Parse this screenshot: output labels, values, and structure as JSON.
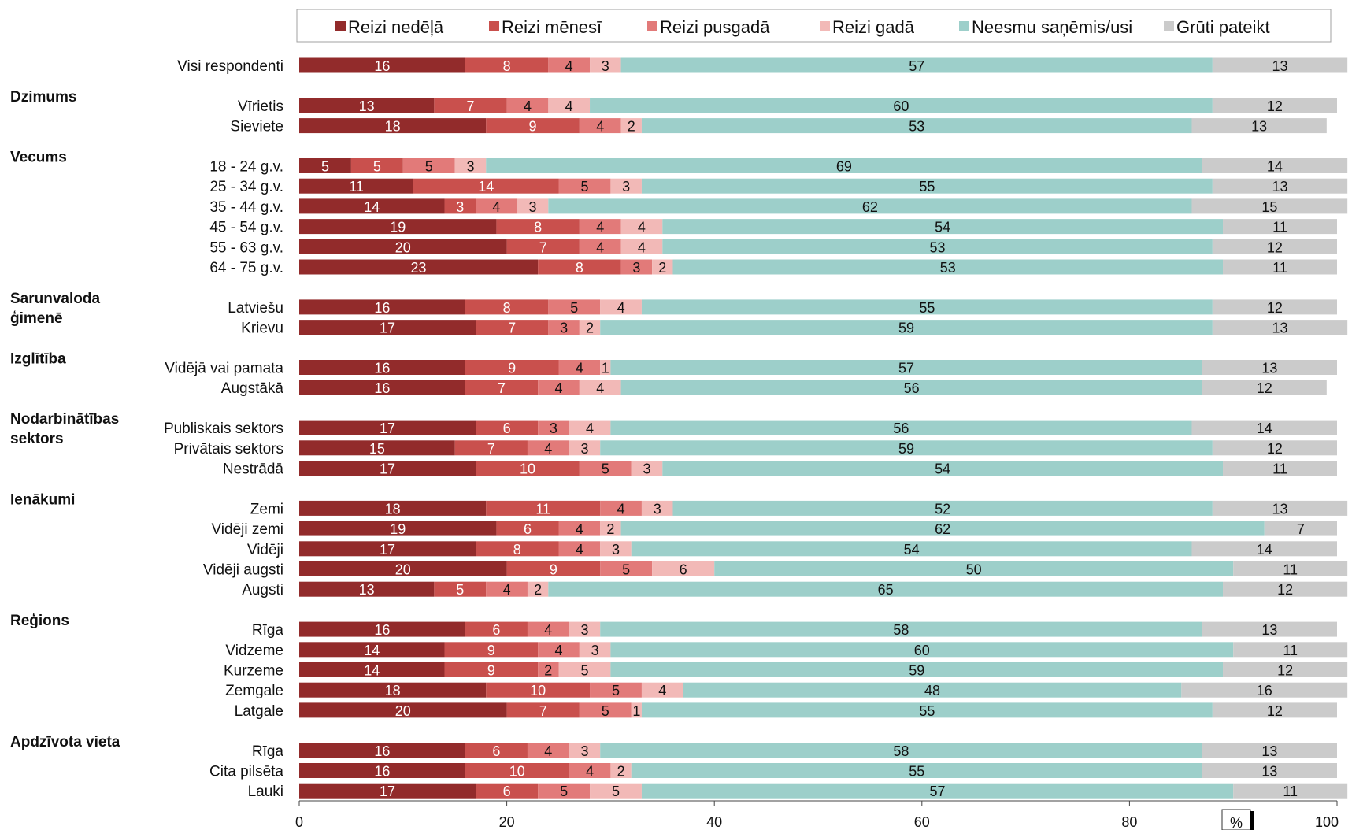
{
  "chart_data": {
    "type": "bar",
    "stacked": true,
    "orientation": "horizontal",
    "unit_label": "%",
    "legend_position": "top",
    "xlim": [
      0,
      100
    ],
    "x_ticks": [
      0,
      20,
      40,
      60,
      80,
      100
    ],
    "grid": false,
    "series": [
      {
        "name": "Reizi nedēļā",
        "color": "#922b2b",
        "label_color": "#ffffff"
      },
      {
        "name": "Reizi mēnesī",
        "color": "#c9504d",
        "label_color": "#ffffff"
      },
      {
        "name": "Reizi pusgadā",
        "color": "#e27a79",
        "label_color": "#111111"
      },
      {
        "name": "Reizi gadā",
        "color": "#f2b9b7",
        "label_color": "#111111"
      },
      {
        "name": "Neesmu saņēmis/usi",
        "color": "#9dcfca",
        "label_color": "#111111"
      },
      {
        "name": "Grūti pateikt",
        "color": "#cbcbcb",
        "label_color": "#111111"
      }
    ],
    "groups": [
      {
        "title": "",
        "title_lines": [],
        "rows": [
          {
            "label": "Visi respondenti",
            "values": [
              16,
              8,
              4,
              3,
              57,
              13
            ]
          }
        ]
      },
      {
        "title": "Dzimums",
        "title_lines": [
          "Dzimums"
        ],
        "rows": [
          {
            "label": "Vīrietis",
            "values": [
              13,
              7,
              4,
              4,
              60,
              12
            ]
          },
          {
            "label": "Sieviete",
            "values": [
              18,
              9,
              4,
              2,
              53,
              13
            ]
          }
        ]
      },
      {
        "title": "Vecums",
        "title_lines": [
          "Vecums"
        ],
        "rows": [
          {
            "label": "18 - 24 g.v.",
            "values": [
              5,
              5,
              5,
              3,
              69,
              14
            ]
          },
          {
            "label": "25 - 34 g.v.",
            "values": [
              11,
              14,
              5,
              3,
              55,
              13
            ]
          },
          {
            "label": "35 - 44 g.v.",
            "values": [
              14,
              3,
              4,
              3,
              62,
              15
            ]
          },
          {
            "label": "45 - 54 g.v.",
            "values": [
              19,
              8,
              4,
              4,
              54,
              11
            ]
          },
          {
            "label": "55 - 63 g.v.",
            "values": [
              20,
              7,
              4,
              4,
              53,
              12
            ]
          },
          {
            "label": "64 - 75 g.v.",
            "values": [
              23,
              8,
              3,
              2,
              53,
              11
            ]
          }
        ]
      },
      {
        "title": "Sarunvaloda ģimenē",
        "title_lines": [
          "Sarunvaloda",
          "ģimenē"
        ],
        "rows": [
          {
            "label": "Latviešu",
            "values": [
              16,
              8,
              5,
              4,
              55,
              12
            ]
          },
          {
            "label": "Krievu",
            "values": [
              17,
              7,
              3,
              2,
              59,
              13
            ]
          }
        ]
      },
      {
        "title": "Izglītība",
        "title_lines": [
          "Izglītība"
        ],
        "rows": [
          {
            "label": "Vidējā vai pamata",
            "values": [
              16,
              9,
              4,
              1,
              57,
              13
            ]
          },
          {
            "label": "Augstākā",
            "values": [
              16,
              7,
              4,
              4,
              56,
              12
            ]
          }
        ]
      },
      {
        "title": "Nodarbinātības sektors",
        "title_lines": [
          "Nodarbinātības",
          "sektors"
        ],
        "rows": [
          {
            "label": "Publiskais sektors",
            "values": [
              17,
              6,
              3,
              4,
              56,
              14
            ]
          },
          {
            "label": "Privātais sektors",
            "values": [
              15,
              7,
              4,
              3,
              59,
              12
            ]
          },
          {
            "label": "Nestrādā",
            "values": [
              17,
              10,
              5,
              3,
              54,
              11
            ]
          }
        ]
      },
      {
        "title": "Ienākumi",
        "title_lines": [
          "Ienākumi"
        ],
        "rows": [
          {
            "label": "Zemi",
            "values": [
              18,
              11,
              4,
              3,
              52,
              13
            ]
          },
          {
            "label": "Vidēji zemi",
            "values": [
              19,
              6,
              4,
              2,
              62,
              7
            ]
          },
          {
            "label": "Vidēji",
            "values": [
              17,
              8,
              4,
              3,
              54,
              14
            ]
          },
          {
            "label": "Vidēji augsti",
            "values": [
              20,
              9,
              5,
              6,
              50,
              11
            ]
          },
          {
            "label": "Augsti",
            "values": [
              13,
              5,
              4,
              2,
              65,
              12
            ]
          }
        ]
      },
      {
        "title": "Reģions",
        "title_lines": [
          "Reģions"
        ],
        "rows": [
          {
            "label": "Rīga",
            "values": [
              16,
              6,
              4,
              3,
              58,
              13
            ]
          },
          {
            "label": "Vidzeme",
            "values": [
              14,
              9,
              4,
              3,
              60,
              11
            ]
          },
          {
            "label": "Kurzeme",
            "values": [
              14,
              9,
              2,
              5,
              59,
              12
            ]
          },
          {
            "label": "Zemgale",
            "values": [
              18,
              10,
              5,
              4,
              48,
              16
            ]
          },
          {
            "label": "Latgale",
            "values": [
              20,
              7,
              5,
              1,
              55,
              12
            ]
          }
        ]
      },
      {
        "title": "Apdzīvota vieta",
        "title_lines": [
          "Apdzīvota vieta"
        ],
        "rows": [
          {
            "label": "Rīga",
            "values": [
              16,
              6,
              4,
              3,
              58,
              13
            ]
          },
          {
            "label": "Cita pilsēta",
            "values": [
              16,
              10,
              4,
              2,
              55,
              13
            ]
          },
          {
            "label": "Lauki",
            "values": [
              17,
              6,
              5,
              5,
              57,
              11
            ]
          }
        ]
      }
    ]
  }
}
